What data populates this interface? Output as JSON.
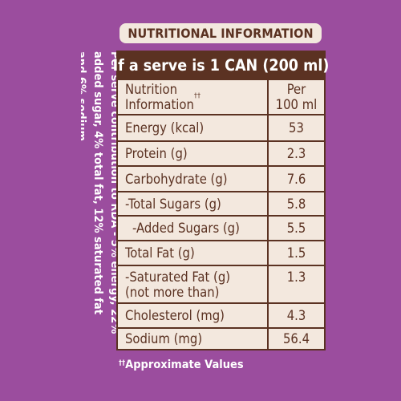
{
  "heading": "NUTRITIONAL INFORMATION",
  "serve_line": "If a serve is 1 CAN (200 ml)",
  "side_note": "Per serve contribution to RDA - 5% energy, 22% added sugar, 4% total fat, 12% saturated fat and 6% sodium",
  "table": {
    "header": {
      "name": "Nutrition\nInformation",
      "name_mark": "††",
      "value": "Per\n100 ml"
    },
    "rows": [
      {
        "name": "Energy (kcal)",
        "value": "53"
      },
      {
        "name": "Protein (g)",
        "value": "2.3"
      },
      {
        "name": "Carbohydrate (g)",
        "value": "7.6"
      },
      {
        "name": "-Total Sugars (g)",
        "value": "5.8"
      },
      {
        "name": "-Added Sugars (g)",
        "value": "5.5"
      },
      {
        "name": "Total Fat (g)",
        "value": "1.5"
      },
      {
        "name": "-Saturated Fat (g)\n(not more than)",
        "value": "1.3"
      },
      {
        "name": "Cholesterol (mg)",
        "value": "4.3"
      },
      {
        "name": "Sodium (mg)",
        "value": "56.4"
      }
    ]
  },
  "footnote": {
    "mark": "††",
    "text": "Approximate Values"
  },
  "colors": {
    "background": "#9b4d9e",
    "label_panel": "#f3e8de",
    "brown": "#5b3222",
    "white_text": "#ffffff"
  }
}
